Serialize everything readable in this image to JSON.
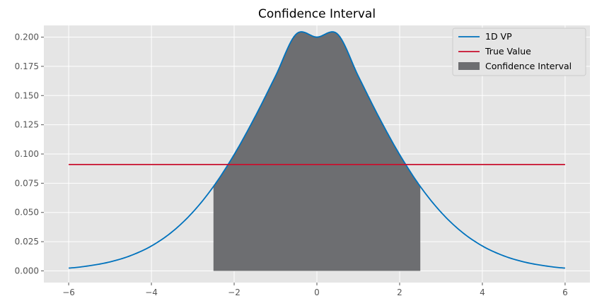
{
  "chart_data": {
    "type": "line",
    "title": "Confidence Interval",
    "xlabel": "",
    "ylabel": "",
    "xlim": [
      -6.6,
      6.6
    ],
    "ylim": [
      -0.01,
      0.21
    ],
    "x_ticks": [
      -6,
      -4,
      -2,
      0,
      2,
      4,
      6
    ],
    "x_tick_labels": [
      "−6",
      "−4",
      "−2",
      "0",
      "2",
      "4",
      "6"
    ],
    "y_ticks": [
      0.0,
      0.025,
      0.05,
      0.075,
      0.1,
      0.125,
      0.15,
      0.175,
      0.2
    ],
    "y_tick_labels": [
      "0.000",
      "0.025",
      "0.050",
      "0.075",
      "0.100",
      "0.125",
      "0.150",
      "0.175",
      "0.200"
    ],
    "grid": true,
    "legend_position": "top-right",
    "series": [
      {
        "name": "1D VP",
        "kind": "curve",
        "color": "#0072BD",
        "x": [
          -6.0,
          -5.5,
          -5.0,
          -4.5,
          -4.0,
          -3.5,
          -3.0,
          -2.5,
          -2.0,
          -1.5,
          -1.0,
          -0.5,
          0.0,
          0.5,
          1.0,
          1.5,
          2.0,
          2.5,
          3.0,
          3.5,
          4.0,
          4.5,
          5.0,
          5.5,
          6.0
        ],
        "y": [
          0.0024,
          0.0044,
          0.0077,
          0.0131,
          0.0213,
          0.0334,
          0.0502,
          0.0722,
          0.0995,
          0.1315,
          0.1667,
          0.2026,
          0.2,
          0.2026,
          0.1667,
          0.1315,
          0.0995,
          0.0722,
          0.0502,
          0.0334,
          0.0213,
          0.0131,
          0.0077,
          0.0044,
          0.0024
        ]
      },
      {
        "name": "True Value",
        "kind": "hline",
        "color": "#C8102E",
        "x": [
          -6,
          6
        ],
        "y": 0.091
      },
      {
        "name": "Confidence Interval",
        "kind": "fill",
        "color": "#6D6E71",
        "x_range": [
          -2.5,
          2.5
        ]
      }
    ]
  }
}
